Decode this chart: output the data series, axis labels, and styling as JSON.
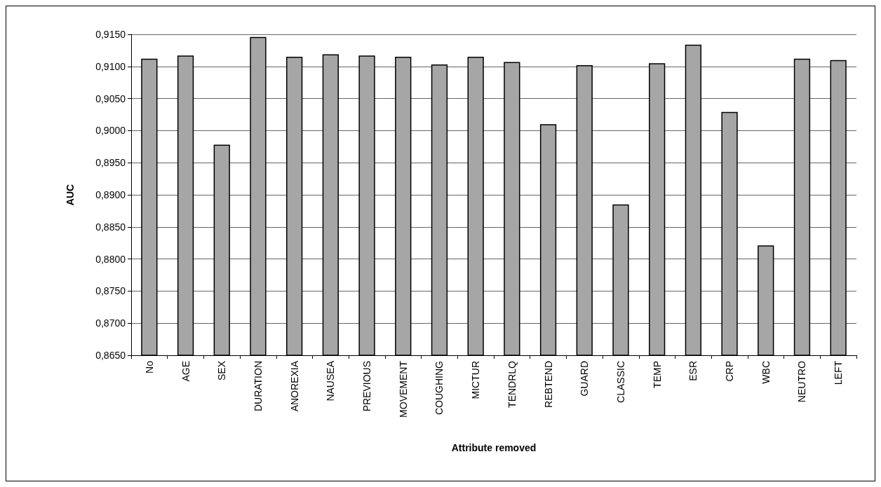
{
  "chart_data": {
    "type": "bar",
    "xlabel": "Attribute removed",
    "ylabel": "AUC",
    "categories": [
      "No",
      "AGE",
      "SEX",
      "DURATION",
      "ANOREXIA",
      "NAUSEA",
      "PREVIOUS",
      "MOVEMENT",
      "COUGHING",
      "MICTUR",
      "TENDRLQ",
      "REBTEND",
      "GUARD",
      "CLASSIC",
      "TEMP",
      "ESR",
      "CRP",
      "WBC",
      "NEUTRO",
      "LEFT"
    ],
    "values": [
      0.9112,
      0.9117,
      0.8978,
      0.9146,
      0.9115,
      0.9119,
      0.9117,
      0.9115,
      0.9103,
      0.9115,
      0.9107,
      0.901,
      0.9102,
      0.8885,
      0.9105,
      0.9134,
      0.9029,
      0.8821,
      0.9112,
      0.911
    ],
    "color": "#a6a6a6",
    "ylim": [
      0.865,
      0.915
    ],
    "yticks": [
      {
        "value": 0.865,
        "label": "0,8650"
      },
      {
        "value": 0.87,
        "label": "0,8700"
      },
      {
        "value": 0.875,
        "label": "0,8750"
      },
      {
        "value": 0.88,
        "label": "0,8800"
      },
      {
        "value": 0.885,
        "label": "0,8850"
      },
      {
        "value": 0.89,
        "label": "0,8900"
      },
      {
        "value": 0.895,
        "label": "0,8950"
      },
      {
        "value": 0.9,
        "label": "0,9000"
      },
      {
        "value": 0.905,
        "label": "0,9050"
      },
      {
        "value": 0.91,
        "label": "0,9100"
      },
      {
        "value": 0.915,
        "label": "0,9150"
      }
    ],
    "grid": "y"
  }
}
